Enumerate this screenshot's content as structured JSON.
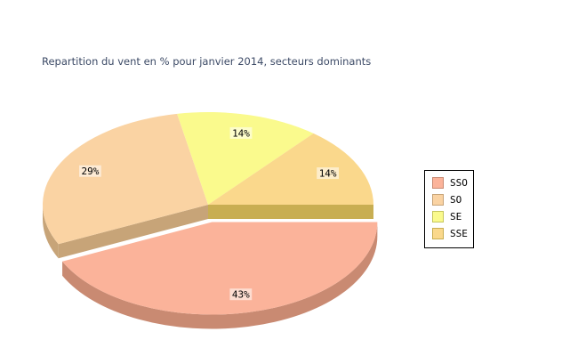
{
  "chart_data": {
    "type": "pie",
    "title": "Repartition du vent en % pour janvier 2014, secteurs dominants",
    "title_color": "#3C4A66",
    "background_color": "#FFFFFF",
    "effect": "3d-exploded",
    "start_angle_deg": 0,
    "direction": "clockwise",
    "legend_position": "right",
    "label_text_color": "#000000",
    "categories": [
      "SSO",
      "SO",
      "SE",
      "SSE"
    ],
    "values": [
      43,
      29,
      14,
      14
    ],
    "slices": [
      {
        "label": "SSO",
        "value": 43,
        "percent_label": "43%",
        "color": "#FBB39A",
        "side_color": "#C98A72",
        "exploded": true
      },
      {
        "label": "SO",
        "value": 29,
        "percent_label": "29%",
        "color": "#FAD3A3",
        "side_color": "#C7A478",
        "exploded": false
      },
      {
        "label": "SE",
        "value": 14,
        "percent_label": "14%",
        "color": "#FAFA8D",
        "side_color": "#C6C65E",
        "exploded": false
      },
      {
        "label": "SSE",
        "value": 14,
        "percent_label": "14%",
        "color": "#FAD88C",
        "side_color": "#C8AE52",
        "exploded": false
      }
    ]
  }
}
